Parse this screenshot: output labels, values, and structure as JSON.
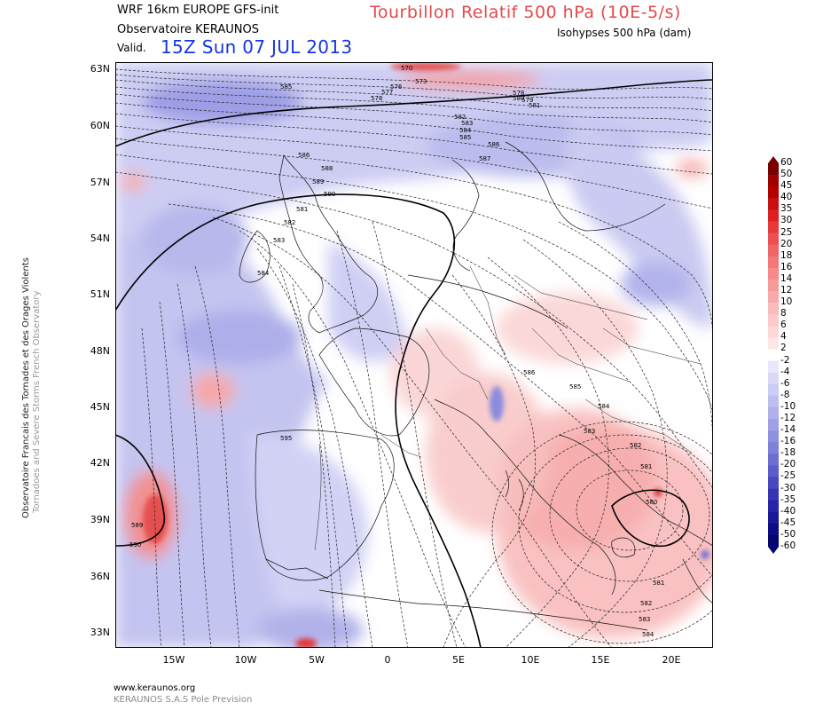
{
  "header": {
    "model": "WRF 16km EUROPE  GFS-init",
    "observatory": "Observatoire KERAUNOS",
    "valid_label": "Valid.",
    "valid_time": "15Z Sun 07 JUL 2013",
    "title": "Tourbillon Relatif 500 hPa (10E-5/s)",
    "subtitle": "Isohypses 500 hPa (dam)"
  },
  "side_text": {
    "line1": "Observatoire Francais des Tornades et des Orages Violents",
    "line2": "Tornadoes and Severe Storms French Observatory"
  },
  "footer": {
    "url": "www.keraunos.org",
    "company": "KERAUNOS S.A.S Pole Prevision"
  },
  "axes": {
    "latitudes": [
      "63N",
      "60N",
      "57N",
      "54N",
      "51N",
      "48N",
      "45N",
      "42N",
      "39N",
      "36N",
      "33N"
    ],
    "longitudes": [
      "15W",
      "10W",
      "5W",
      "0",
      "5E",
      "10E",
      "15E",
      "20E"
    ]
  },
  "colorbar": {
    "labels": [
      "60",
      "50",
      "45",
      "40",
      "35",
      "30",
      "25",
      "20",
      "18",
      "16",
      "14",
      "12",
      "10",
      "8",
      "6",
      "4",
      "2",
      "-2",
      "-4",
      "-6",
      "-8",
      "-10",
      "-12",
      "-14",
      "-16",
      "-18",
      "-20",
      "-25",
      "-30",
      "-35",
      "-40",
      "-45",
      "-50",
      "-60"
    ],
    "colors": [
      "#7a0000",
      "#9e0000",
      "#b30000",
      "#c91010",
      "#de2020",
      "#e63a3a",
      "#ec5050",
      "#f06666",
      "#f27878",
      "#f48a8a",
      "#f69a9a",
      "#f8aaaa",
      "#fabbbb",
      "#fccaca",
      "#fdd8d8",
      "#fee6e6",
      "#ffffff",
      "#e8e8fb",
      "#dadaf8",
      "#ccccf4",
      "#bebef0",
      "#b0b0ec",
      "#a0a0e6",
      "#9090e0",
      "#8080da",
      "#6e6ed2",
      "#5c5cca",
      "#4848c0",
      "#3636b4",
      "#2626a6",
      "#181896",
      "#0c0c84",
      "#060670"
    ]
  },
  "map": {
    "contour_labels_north": [
      "570",
      "573",
      "576",
      "577",
      "578",
      "578",
      "579",
      "580",
      "581",
      "582",
      "583",
      "584",
      "585",
      "586",
      "587"
    ],
    "contour_labels_west": [
      "586",
      "588",
      "589",
      "590",
      "581",
      "582",
      "583",
      "584",
      "585"
    ],
    "contour_labels_south": [
      "586",
      "585",
      "584",
      "583",
      "582",
      "581",
      "580",
      "581",
      "582",
      "583",
      "584"
    ],
    "contour_labels_iberia": [
      "589",
      "590",
      "595"
    ]
  }
}
